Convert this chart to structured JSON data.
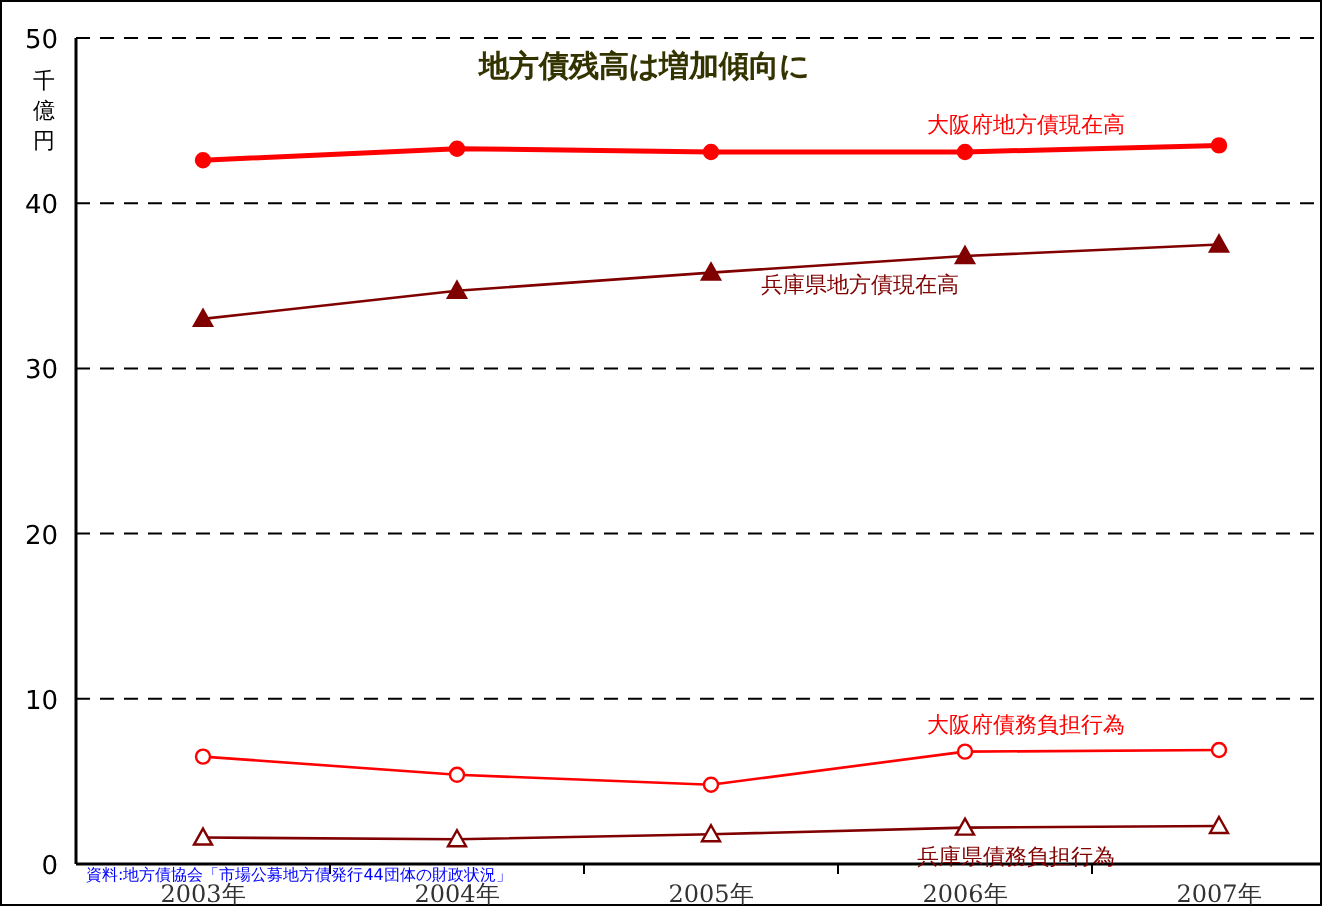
{
  "chart_data": {
    "type": "line",
    "title": "地方債残高は増加傾向に",
    "ylabel": "千億円",
    "categories": [
      "2003年",
      "2004年",
      "2005年",
      "2006年",
      "2007年"
    ],
    "series": [
      {
        "name": "大阪府地方債現在高",
        "color": "#ff0000",
        "marker": "circle",
        "values": [
          42.6,
          43.3,
          43.1,
          43.1,
          43.5
        ]
      },
      {
        "name": "兵庫県地方債現在高",
        "color": "#800000",
        "marker": "triangle",
        "values": [
          33.0,
          34.7,
          35.8,
          36.8,
          37.5
        ]
      },
      {
        "name": "大阪府債務負担行為",
        "color": "#ff0000",
        "marker": "circle",
        "values": [
          6.5,
          5.4,
          4.8,
          6.8,
          6.9
        ]
      },
      {
        "name": "兵庫県債務負担行為",
        "color": "#800000",
        "marker": "triangle",
        "values": [
          1.6,
          1.5,
          1.8,
          2.2,
          2.3
        ]
      }
    ],
    "ylim": [
      0,
      50
    ],
    "yticks": [
      0,
      10,
      20,
      30,
      40,
      50
    ],
    "grid": "y",
    "annotations": [
      "資料:地方債協会「市場公募地方債発行44団体の財政状況」"
    ]
  }
}
